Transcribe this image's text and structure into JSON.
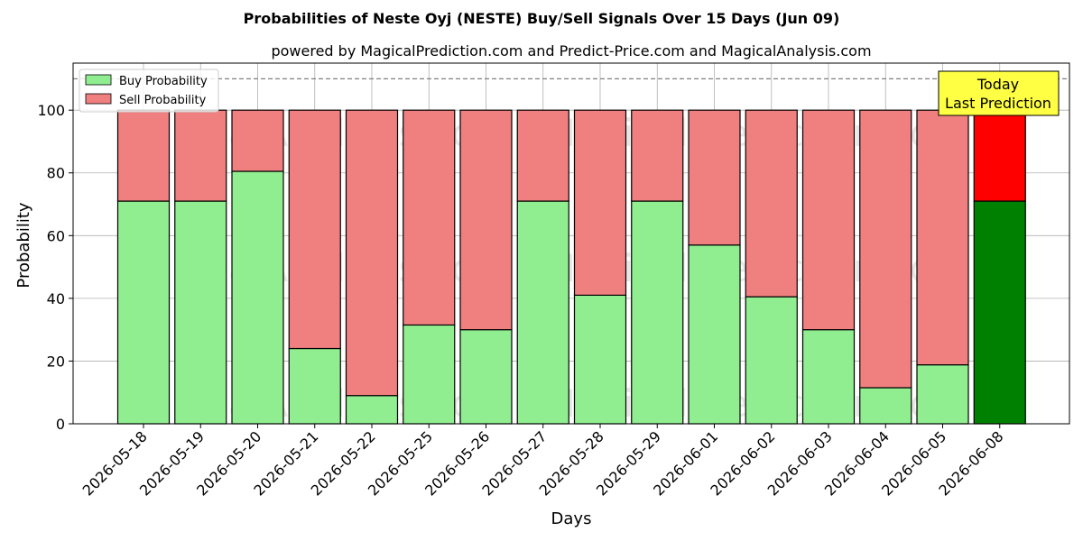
{
  "chart_data": {
    "type": "bar",
    "stacked": true,
    "title": "Probabilities of Neste Oyj (NESTE) Buy/Sell Signals Over 15 Days (Jun 09)",
    "subtitle": "powered by MagicalPrediction.com and Predict-Price.com and MagicalAnalysis.com",
    "xlabel": "Days",
    "ylabel": "Probability",
    "ylim": [
      0,
      115
    ],
    "yticks": [
      0,
      20,
      40,
      60,
      80,
      100
    ],
    "grid": true,
    "legend_position": "top-left",
    "reference_line": 110,
    "categories": [
      "2026-05-18",
      "2026-05-19",
      "2026-05-20",
      "2026-05-21",
      "2026-05-22",
      "2026-05-25",
      "2026-05-26",
      "2026-05-27",
      "2026-05-28",
      "2026-05-29",
      "2026-06-01",
      "2026-06-02",
      "2026-06-03",
      "2026-06-04",
      "2026-06-05",
      "2026-06-08"
    ],
    "series": [
      {
        "name": "Buy Probability",
        "color": "#90ee90",
        "highlight_color": "#008000",
        "values": [
          71,
          71,
          80.5,
          24,
          9,
          31.5,
          30,
          71,
          41,
          71,
          57,
          40.5,
          30,
          11.5,
          18.8,
          71
        ]
      },
      {
        "name": "Sell Probability",
        "color": "#f08080",
        "highlight_color": "#ff0000",
        "values": [
          29,
          29,
          19.5,
          76,
          91,
          68.5,
          70,
          29,
          59,
          29,
          43,
          59.5,
          70,
          88.5,
          81.2,
          29
        ]
      }
    ],
    "annotation": {
      "lines": [
        "Today",
        "Last Prediction"
      ],
      "color": "#ffff44"
    },
    "watermarks": [
      "MagicalAnalysis.com",
      "MagicalPrediction.com"
    ]
  }
}
